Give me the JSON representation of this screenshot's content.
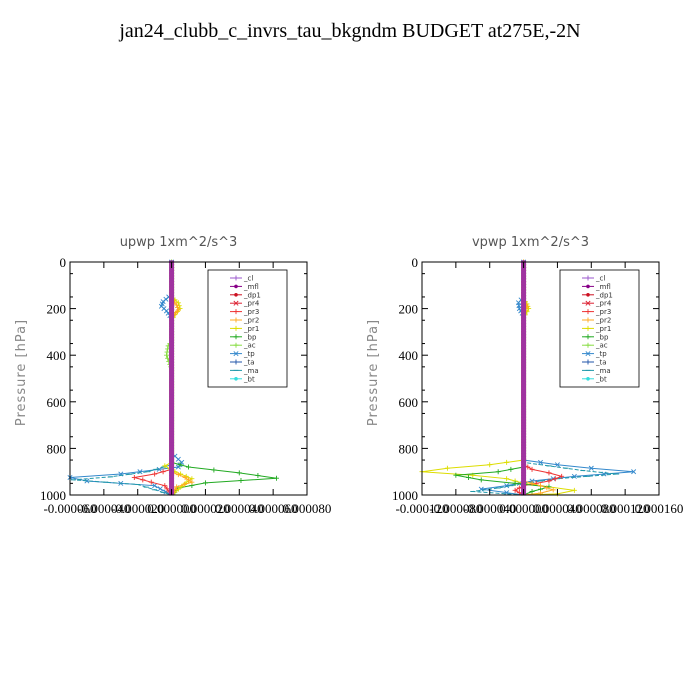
{
  "title": "jan24_clubb_c_invrs_tau_bkgndm  BUDGET at275E,-2N",
  "legend": [
    {
      "name": "_cl",
      "color": "#9955cc",
      "marker": "+"
    },
    {
      "name": "_mfl",
      "color": "#880088",
      "marker": "●"
    },
    {
      "name": "_dp1",
      "color": "#cc1122",
      "marker": "●"
    },
    {
      "name": "_pr4",
      "color": "#dd2233",
      "marker": "×"
    },
    {
      "name": "_pr3",
      "color": "#ee3333",
      "marker": "*"
    },
    {
      "name": "_pr2",
      "color": "#ffaa22",
      "marker": "*"
    },
    {
      "name": "_pr1",
      "color": "#dddd00",
      "marker": "+"
    },
    {
      "name": "_bp",
      "color": "#22aa22",
      "marker": "+"
    },
    {
      "name": "_ac",
      "color": "#88dd44",
      "marker": "+"
    },
    {
      "name": "_tp",
      "color": "#3388cc",
      "marker": "×"
    },
    {
      "name": "_ta",
      "color": "#2255aa",
      "marker": "+"
    },
    {
      "name": "_ma",
      "color": "#2299aa",
      "marker": "-"
    },
    {
      "name": "_bt",
      "color": "#33dddd",
      "marker": "◆"
    }
  ],
  "chart_data": [
    {
      "type": "line",
      "title": "upwp   1xm^2/s^3",
      "ylabel": "Pressure [hPa]",
      "xlim": [
        -6e-05,
        8e-05
      ],
      "ylim": [
        1000,
        0
      ],
      "xticks": [
        "-0.000060",
        "-0.000040",
        "-0.000020",
        "0.000000",
        "0.000020",
        "0.000040",
        "0.000060",
        "0.000080"
      ],
      "yticks": [
        0,
        200,
        400,
        600,
        800,
        1000
      ],
      "series": [
        {
          "name": "_tp",
          "points": [
            [
              0,
              0
            ],
            [
              0,
              140
            ],
            [
              -5e-06,
              170
            ],
            [
              -6e-06,
              190
            ],
            [
              -3e-06,
              210
            ],
            [
              0,
              240
            ],
            [
              0,
              820
            ],
            [
              6e-06,
              860
            ],
            [
              4e-06,
              880
            ],
            [
              -3e-05,
              910
            ],
            [
              -6e-05,
              925
            ],
            [
              -5e-05,
              940
            ],
            [
              -1e-05,
              960
            ],
            [
              0,
              1000
            ]
          ]
        },
        {
          "name": "_ma",
          "points": [
            [
              0,
              0
            ],
            [
              0,
              870
            ],
            [
              -1.4e-05,
              900
            ],
            [
              -3.6e-05,
              922
            ],
            [
              -5.8e-05,
              935
            ],
            [
              -2e-05,
              955
            ],
            [
              0,
              1000
            ]
          ]
        },
        {
          "name": "_bp",
          "points": [
            [
              0,
              0
            ],
            [
              0,
              860
            ],
            [
              1e-05,
              880
            ],
            [
              4e-05,
              905
            ],
            [
              6.2e-05,
              928
            ],
            [
              2e-05,
              948
            ],
            [
              4e-06,
              970
            ],
            [
              0,
              1000
            ]
          ]
        },
        {
          "name": "_pr1",
          "points": [
            [
              0,
              0
            ],
            [
              0,
              150
            ],
            [
              4e-06,
              175
            ],
            [
              5e-06,
              200
            ],
            [
              2e-06,
              225
            ],
            [
              0,
              250
            ],
            [
              0,
              860
            ],
            [
              -4e-06,
              875
            ],
            [
              2e-06,
              900
            ],
            [
              1.2e-05,
              930
            ],
            [
              8e-06,
              950
            ],
            [
              0,
              1000
            ]
          ]
        },
        {
          "name": "_pr2",
          "points": [
            [
              0,
              0
            ],
            [
              0,
              160
            ],
            [
              3e-06,
              185
            ],
            [
              4e-06,
              205
            ],
            [
              0,
              240
            ],
            [
              0,
              900
            ],
            [
              8e-06,
              925
            ],
            [
              1.2e-05,
              945
            ],
            [
              3e-06,
              965
            ],
            [
              0,
              1000
            ]
          ]
        },
        {
          "name": "_pr3",
          "points": [
            [
              0,
              0
            ],
            [
              0,
              890
            ],
            [
              -1e-05,
              910
            ],
            [
              -2.2e-05,
              925
            ],
            [
              -1.2e-05,
              945
            ],
            [
              -4e-06,
              960
            ],
            [
              0,
              1000
            ]
          ]
        },
        {
          "name": "_ac",
          "points": [
            [
              0,
              0
            ],
            [
              0,
              340
            ],
            [
              -2e-06,
              360
            ],
            [
              -3e-06,
              400
            ],
            [
              -1e-06,
              440
            ],
            [
              0,
              460
            ],
            [
              0,
              1000
            ]
          ]
        },
        {
          "name": "_mfl",
          "points": [
            [
              0,
              0
            ],
            [
              0,
              1000
            ]
          ]
        }
      ]
    },
    {
      "type": "line",
      "title": "vpwp   1xm^2/s^3",
      "ylabel": "Pressure [hPa]",
      "xlim": [
        -0.00012,
        0.00016
      ],
      "ylim": [
        1000,
        0
      ],
      "xticks": [
        "-0.000120",
        "-0.000080",
        "-0.000040",
        "0.000000",
        "0.000040",
        "0.000080",
        "0.000120",
        "0.000160"
      ],
      "yticks": [
        0,
        200,
        400,
        600,
        800,
        1000
      ],
      "series": [
        {
          "name": "_tp",
          "points": [
            [
              0,
              0
            ],
            [
              0,
              150
            ],
            [
              -6e-06,
              175
            ],
            [
              -5e-06,
              200
            ],
            [
              0,
              230
            ],
            [
              0,
              850
            ],
            [
              4e-05,
              870
            ],
            [
              8e-05,
              885
            ],
            [
              0.00013,
              900
            ],
            [
              6e-05,
              920
            ],
            [
              1e-05,
              940
            ],
            [
              -2e-05,
              960
            ],
            [
              -5e-05,
              975
            ],
            [
              -2e-05,
              990
            ],
            [
              0,
              1000
            ]
          ]
        },
        {
          "name": "_ma",
          "points": [
            [
              0,
              0
            ],
            [
              0,
              860
            ],
            [
              3e-05,
              875
            ],
            [
              7e-05,
              895
            ],
            [
              0.00011,
              910
            ],
            [
              4e-05,
              930
            ],
            [
              0,
              950
            ],
            [
              -3e-05,
              970
            ],
            [
              -6e-05,
              985
            ],
            [
              0,
              1000
            ]
          ]
        },
        {
          "name": "_pr1",
          "points": [
            [
              0,
              0
            ],
            [
              0,
              160
            ],
            [
              4e-06,
              180
            ],
            [
              6e-06,
              200
            ],
            [
              0,
              240
            ],
            [
              0,
              850
            ],
            [
              -4e-05,
              870
            ],
            [
              -9e-05,
              885
            ],
            [
              -0.00012,
              900
            ],
            [
              -6e-05,
              915
            ],
            [
              -2e-05,
              930
            ],
            [
              0,
              950
            ],
            [
              3e-05,
              965
            ],
            [
              6e-05,
              980
            ],
            [
              4e-05,
              995
            ],
            [
              0,
              1000
            ]
          ]
        },
        {
          "name": "_pr3",
          "points": [
            [
              0,
              0
            ],
            [
              0,
              870
            ],
            [
              1e-05,
              890
            ],
            [
              3e-05,
              905
            ],
            [
              4.5e-05,
              920
            ],
            [
              3e-05,
              940
            ],
            [
              0,
              960
            ],
            [
              -1e-05,
              980
            ],
            [
              0,
              1000
            ]
          ]
        },
        {
          "name": "_bp",
          "points": [
            [
              0,
              0
            ],
            [
              0,
              880
            ],
            [
              -3e-05,
              900
            ],
            [
              -8e-05,
              915
            ],
            [
              -5e-05,
              935
            ],
            [
              -1e-05,
              950
            ],
            [
              3e-05,
              965
            ],
            [
              1e-05,
              985
            ],
            [
              0,
              1000
            ]
          ]
        },
        {
          "name": "_pr2",
          "points": [
            [
              0,
              0
            ],
            [
              0,
              170
            ],
            [
              4e-06,
              190
            ],
            [
              0,
              220
            ],
            [
              0,
              940
            ],
            [
              2e-05,
              960
            ],
            [
              3.5e-05,
              978
            ],
            [
              2e-05,
              992
            ],
            [
              0,
              1000
            ]
          ]
        },
        {
          "name": "_mfl",
          "points": [
            [
              0,
              0
            ],
            [
              0,
              1000
            ]
          ]
        }
      ]
    }
  ]
}
